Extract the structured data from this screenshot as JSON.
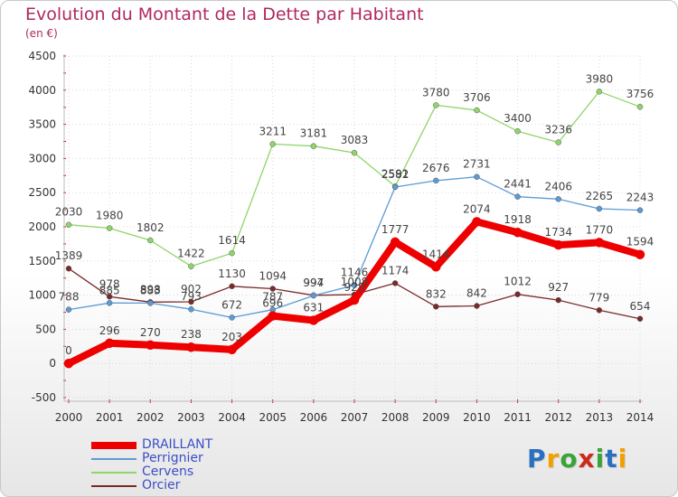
{
  "title": "Evolution du Montant de la Dette par Habitant",
  "unit": "(en €)",
  "logo": {
    "text": "Proxiti",
    "colors": [
      "#2a6fc0",
      "#f2a000",
      "#3aa33a",
      "#cc2a1a",
      "#3aa33a",
      "#2a6fc0",
      "#f2a000"
    ]
  },
  "chart_data": {
    "type": "line",
    "x": [
      "2000",
      "2001",
      "2002",
      "2003",
      "2004",
      "2005",
      "2006",
      "2007",
      "2008",
      "2009",
      "2010",
      "2011",
      "2012",
      "2013",
      "2014"
    ],
    "ylim": [
      -500,
      4500
    ],
    "yticks": [
      "-500",
      "0",
      "500",
      "1000",
      "1500",
      "2000",
      "2500",
      "3000",
      "3500",
      "4000",
      "4500"
    ],
    "grid": true,
    "legend_position": "bottom-left",
    "series": [
      {
        "name": "DRAILLANT",
        "color": "#ee0000",
        "width": 8,
        "values": [
          0,
          296,
          270,
          238,
          203,
          696,
          631,
          928,
          1777,
          1414,
          2074,
          1918,
          1734,
          1770,
          1594
        ],
        "labels": [
          "0",
          "296",
          "270",
          "238",
          "203",
          "696",
          "631",
          "928",
          "1777",
          "1414",
          "2074",
          "1918",
          "1734",
          "1770",
          "1594"
        ]
      },
      {
        "name": "Perrignier",
        "color": "#5b9bd5",
        "width": 1.3,
        "values": [
          788,
          885,
          883,
          793,
          672,
          787,
          994,
          1146,
          2582,
          2676,
          2731,
          2441,
          2406,
          2265,
          2243
        ],
        "labels": [
          "788",
          "885",
          "883",
          "793",
          "672",
          "787",
          "994",
          "1146",
          "2582",
          "2676",
          "2731",
          "2441",
          "2406",
          "2265",
          "2243"
        ]
      },
      {
        "name": "Cervens",
        "color": "#8fd56a",
        "width": 1.3,
        "values": [
          2030,
          1980,
          1802,
          1422,
          1614,
          3211,
          3181,
          3083,
          2591,
          3780,
          3706,
          3400,
          3236,
          3980,
          3756
        ],
        "labels": [
          "2030",
          "1980",
          "1802",
          "1422",
          "1614",
          "3211",
          "3181",
          "3083",
          "2591",
          "3780",
          "3706",
          "3400",
          "3236",
          "3980",
          "3756"
        ]
      },
      {
        "name": "Orcier",
        "color": "#7a2a2a",
        "width": 1.3,
        "values": [
          1389,
          978,
          898,
          902,
          1130,
          1094,
          997,
          1008,
          1174,
          832,
          842,
          1012,
          927,
          779,
          654
        ],
        "labels": [
          "1389",
          "978",
          "898",
          "902",
          "1130",
          "1094",
          "997",
          "1008",
          "1174",
          "832",
          "842",
          "1012",
          "927",
          "779",
          "654"
        ]
      }
    ]
  }
}
